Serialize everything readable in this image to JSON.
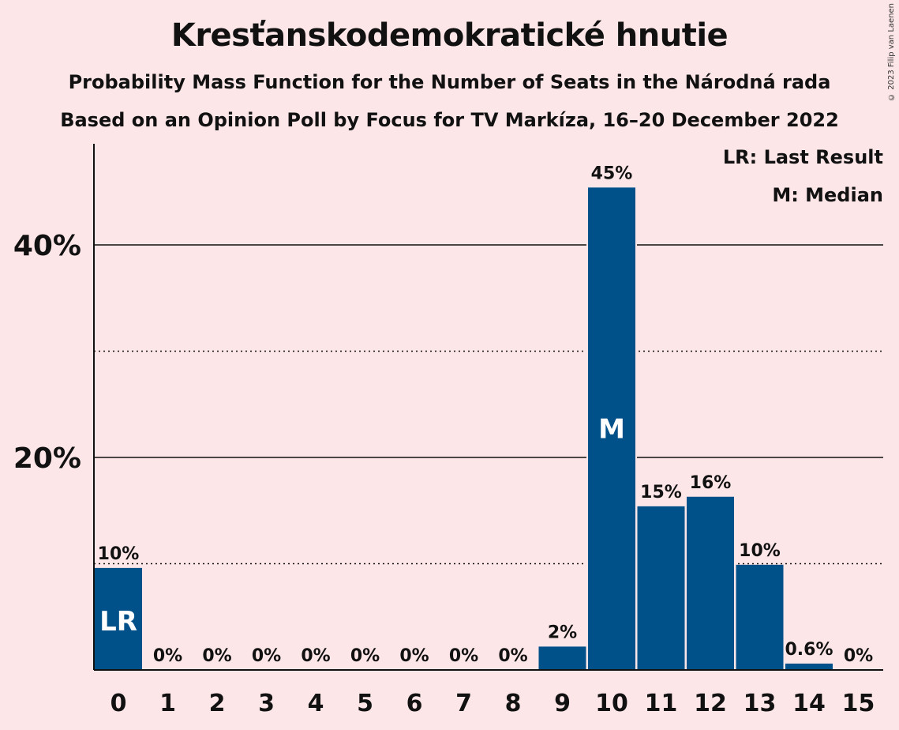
{
  "title": "Kresťanskodemokratické hnutie",
  "subtitle1": "Probability Mass Function for the Number of Seats in the Národná rada",
  "subtitle2": "Based on an Opinion Poll by Focus for TV Markíza, 16–20 December 2022",
  "copyright": "© 2023 Filip van Laenen",
  "legend": {
    "last_result": "LR: Last Result",
    "median": "M: Median"
  },
  "colors": {
    "background": "#fde6e8",
    "bar": "#00508a"
  },
  "chart_data": {
    "type": "bar",
    "categories": [
      "0",
      "1",
      "2",
      "3",
      "4",
      "5",
      "6",
      "7",
      "8",
      "9",
      "10",
      "11",
      "12",
      "13",
      "14",
      "15"
    ],
    "values": [
      9.6,
      0,
      0,
      0,
      0,
      0,
      0,
      0,
      0,
      2.2,
      45.4,
      15.4,
      16.3,
      9.9,
      0.6,
      0
    ],
    "value_labels": [
      "10%",
      "0%",
      "0%",
      "0%",
      "0%",
      "0%",
      "0%",
      "0%",
      "0%",
      "2%",
      "45%",
      "15%",
      "16%",
      "10%",
      "0.6%",
      "0%"
    ],
    "bar_markers": {
      "0": "LR",
      "10": "M"
    },
    "ylim": [
      0,
      48
    ],
    "ytick_values": [
      20,
      40
    ],
    "ytick_labels": [
      "20%",
      "40%"
    ],
    "minor_gridlines": [
      10,
      30
    ],
    "legend_position": "top-right"
  }
}
